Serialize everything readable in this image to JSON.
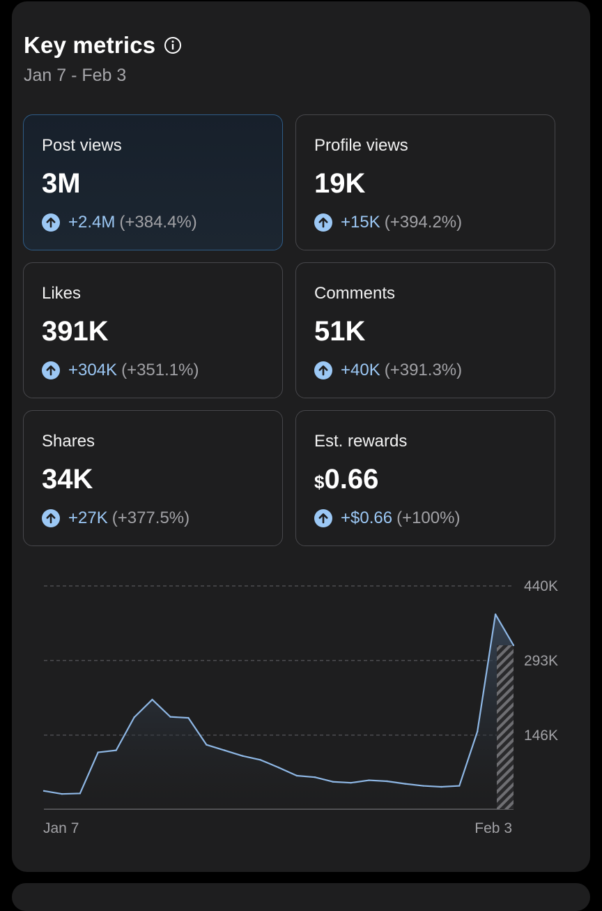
{
  "header": {
    "title": "Key metrics",
    "date_range": "Jan 7 - Feb 3"
  },
  "metrics": [
    {
      "label": "Post views",
      "value": "3M",
      "currency": "",
      "delta": "+2.4M",
      "percent": "(+384.4%)",
      "selected": true
    },
    {
      "label": "Profile views",
      "value": "19K",
      "currency": "",
      "delta": "+15K",
      "percent": "(+394.2%)",
      "selected": false
    },
    {
      "label": "Likes",
      "value": "391K",
      "currency": "",
      "delta": "+304K",
      "percent": "(+351.1%)",
      "selected": false
    },
    {
      "label": "Comments",
      "value": "51K",
      "currency": "",
      "delta": "+40K",
      "percent": "(+391.3%)",
      "selected": false
    },
    {
      "label": "Shares",
      "value": "34K",
      "currency": "",
      "delta": "+27K",
      "percent": "(+377.5%)",
      "selected": false
    },
    {
      "label": "Est. rewards",
      "value": "0.66",
      "currency": "$",
      "delta": "+$0.66",
      "percent": "(+100%)",
      "selected": false
    }
  ],
  "colors": {
    "accent": "#9cc8f5",
    "selected_border": "#2f5c86",
    "line": "#8fb8e6"
  },
  "chart_data": {
    "type": "area",
    "x_labels": [
      "Jan 7",
      "Feb 3"
    ],
    "yticks": [
      "440K",
      "293K",
      "146K"
    ],
    "ytick_values": [
      440000,
      293000,
      146000
    ],
    "ylim": [
      0,
      440000
    ],
    "grid": true,
    "last_point_partial": true,
    "series": [
      {
        "values": [
          36000,
          30000,
          31000,
          112000,
          116000,
          181000,
          216000,
          182000,
          180000,
          127000,
          116000,
          105000,
          97000,
          82000,
          66000,
          63000,
          54000,
          52000,
          57000,
          55000,
          50000,
          46000,
          44000,
          46000,
          153000,
          384000,
          323000
        ]
      }
    ]
  }
}
